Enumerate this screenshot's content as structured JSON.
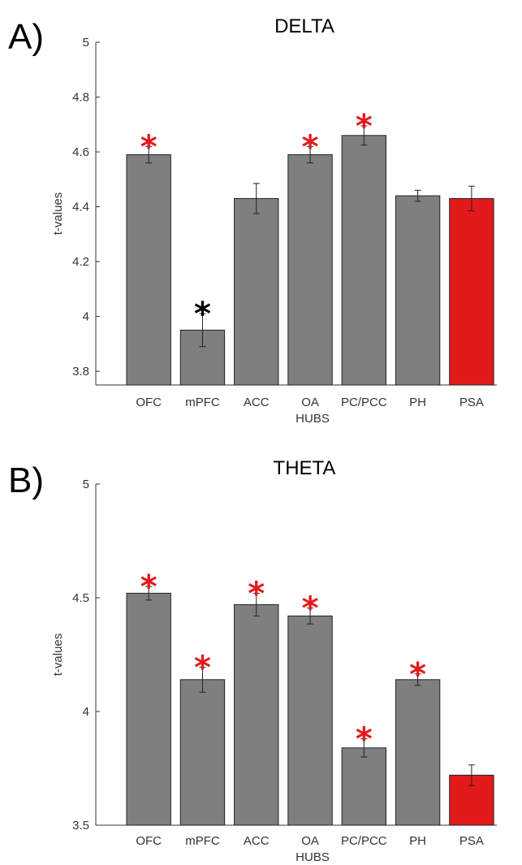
{
  "chart_data": [
    {
      "type": "bar",
      "panel_label": "A)",
      "title": "DELTA",
      "xlabel": "HUBS",
      "ylabel": "t-values",
      "categories": [
        "OFC",
        "mPFC",
        "ACC",
        "OA",
        "PC/PCC",
        "PH",
        "PSA"
      ],
      "values": [
        4.59,
        3.95,
        4.43,
        4.59,
        4.66,
        4.44,
        4.43
      ],
      "errors": [
        0.03,
        0.06,
        0.055,
        0.03,
        0.035,
        0.02,
        0.045
      ],
      "ylim": [
        3.75,
        5.0
      ],
      "yticks": [
        "3.8",
        "4",
        "4.2",
        "4.4",
        "4.6",
        "4.8",
        "5"
      ],
      "ytick_values": [
        3.8,
        4.0,
        4.2,
        4.4,
        4.6,
        4.8,
        5.0
      ],
      "significance": [
        "red",
        "black",
        "",
        "red",
        "red",
        "",
        ""
      ],
      "bar_colors": [
        "#7f7f7f",
        "#7f7f7f",
        "#7f7f7f",
        "#7f7f7f",
        "#7f7f7f",
        "#7f7f7f",
        "#e31a1c"
      ],
      "grid": false
    },
    {
      "type": "bar",
      "panel_label": "B)",
      "title": "THETA",
      "xlabel": "HUBS",
      "ylabel": "t-values",
      "categories": [
        "OFC",
        "mPFC",
        "ACC",
        "OA",
        "PC/PCC",
        "PH",
        "PSA"
      ],
      "values": [
        4.52,
        4.14,
        4.47,
        4.42,
        3.84,
        4.14,
        3.72
      ],
      "errors": [
        0.03,
        0.055,
        0.05,
        0.035,
        0.04,
        0.025,
        0.045
      ],
      "ylim": [
        3.5,
        5.0
      ],
      "yticks": [
        "3.5",
        "4",
        "4.5",
        "5"
      ],
      "ytick_values": [
        3.5,
        4.0,
        4.5,
        5.0
      ],
      "significance": [
        "red",
        "red",
        "red",
        "red",
        "red",
        "red",
        ""
      ],
      "bar_colors": [
        "#7f7f7f",
        "#7f7f7f",
        "#7f7f7f",
        "#7f7f7f",
        "#7f7f7f",
        "#7f7f7f",
        "#e31a1c"
      ],
      "grid": false
    }
  ],
  "sig_symbol": "*",
  "sig_colors": {
    "red": "#e31a1c",
    "black": "#000000"
  }
}
